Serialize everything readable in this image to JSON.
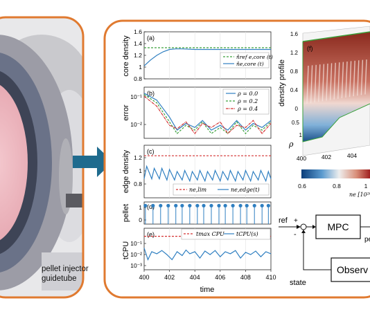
{
  "left_panel": {
    "caption_line1": "pellet injector",
    "caption_line2": "guidetube"
  },
  "plots": {
    "xlabel": "time",
    "x_ticks": [
      "400",
      "402",
      "404",
      "406",
      "408",
      "410"
    ],
    "a": {
      "tag": "(a)",
      "ylabel": "core density",
      "y_ticks": [
        "1.6",
        "1.4",
        "1.2",
        "1",
        "0.8"
      ],
      "legend": [
        "n̂ref e,core (t)",
        "n̂e,core (t)"
      ]
    },
    "b": {
      "tag": "(b)",
      "ylabel": "error",
      "y_ticks": [
        "10⁻¹",
        "10⁻²"
      ],
      "legend": [
        "ρ = 0.0",
        "ρ = 0.2",
        "ρ = 0.4"
      ]
    },
    "c": {
      "tag": "(c)",
      "ylabel": "edge density",
      "y_ticks": [
        "1.2",
        "1",
        "0.8"
      ],
      "legend": [
        "ne,lim",
        "ne,edge(t)"
      ]
    },
    "d": {
      "tag": "(d)",
      "ylabel": "pellet",
      "y_ticks": [
        "1",
        "0"
      ]
    },
    "e": {
      "tag": "(e)",
      "ylabel": "tCPU",
      "y_ticks": [
        "10⁻¹",
        "10⁻²",
        "10⁻³"
      ],
      "legend": [
        "tmax CPU",
        "tCPU(s)"
      ]
    }
  },
  "surface": {
    "tag": "(f)",
    "zlabel": "density profile",
    "ylabel": "ρ",
    "z_ticks": [
      "1.6",
      "1.2",
      "0.8",
      "0.4",
      "0"
    ],
    "rho_ticks": [
      "0.5",
      "1"
    ],
    "x_ticks": [
      "400",
      "402",
      "404"
    ],
    "colorbar_ticks": [
      "0.6",
      "0.8",
      "1"
    ],
    "colorbar_label": "ne [10²⁰"
  },
  "block_diagram": {
    "ref_label": "ref",
    "plus": "+",
    "minus": "-",
    "mpc_label": "MPC",
    "observer_label": "Observ",
    "state_label": "state",
    "pellet_label": "pe"
  },
  "colors": {
    "frame_orange": "#e07a30",
    "arrow_blue": "#1f6b8e",
    "series_blue": "#2f7fc1",
    "series_green": "#3aa03a",
    "series_red": "#d43030",
    "panel_bg": "#f2f2f2"
  },
  "chart_data": [
    {
      "type": "line",
      "panel": "a",
      "xlim": [
        400,
        410
      ],
      "ylim": [
        0.8,
        1.6
      ],
      "series": [
        {
          "name": "n̂ref e,core (t)",
          "x": [
            400,
            410
          ],
          "y": [
            1.33,
            1.33
          ]
        },
        {
          "name": "n̂e,core (t)",
          "x": [
            400,
            400.5,
            401,
            401.5,
            402,
            402.5,
            403,
            404,
            405,
            406,
            407,
            408,
            409,
            410
          ],
          "y": [
            1.02,
            1.12,
            1.2,
            1.26,
            1.3,
            1.31,
            1.31,
            1.3,
            1.3,
            1.3,
            1.3,
            1.3,
            1.3,
            1.3
          ]
        }
      ]
    },
    {
      "type": "line",
      "panel": "b",
      "xlim": [
        400,
        410
      ],
      "ylim": [
        0.002,
        0.15
      ],
      "yscale": "log",
      "series": [
        {
          "name": "ρ = 0.0",
          "x": [
            400,
            401,
            402,
            402.6,
            403.3,
            404,
            404.6,
            405.3,
            406,
            406.6,
            407.3,
            408,
            408.6,
            409.3,
            410
          ],
          "y": [
            0.09,
            0.05,
            0.012,
            0.004,
            0.007,
            0.005,
            0.009,
            0.004,
            0.006,
            0.004,
            0.009,
            0.004,
            0.007,
            0.005,
            0.009
          ]
        },
        {
          "name": "ρ = 0.2",
          "x": [
            400,
            401,
            402,
            402.6,
            403.3,
            404,
            404.6,
            405.3,
            406,
            406.6,
            407.3,
            408,
            408.6,
            409.3,
            410
          ],
          "y": [
            0.08,
            0.04,
            0.008,
            0.003,
            0.006,
            0.004,
            0.008,
            0.003,
            0.005,
            0.003,
            0.008,
            0.003,
            0.006,
            0.004,
            0.008
          ]
        },
        {
          "name": "ρ = 0.4",
          "x": [
            400,
            401,
            402,
            402.6,
            403.3,
            404,
            404.6,
            405.3,
            406,
            406.6,
            407.3,
            408,
            408.6,
            409.3,
            410
          ],
          "y": [
            0.07,
            0.03,
            0.006,
            0.0045,
            0.008,
            0.003,
            0.007,
            0.005,
            0.008,
            0.003,
            0.006,
            0.005,
            0.009,
            0.003,
            0.007
          ]
        }
      ]
    },
    {
      "type": "line",
      "panel": "c",
      "xlim": [
        400,
        410
      ],
      "ylim": [
        0.8,
        1.3
      ],
      "series": [
        {
          "name": "ne,lim",
          "x": [
            400,
            410
          ],
          "y": [
            1.2,
            1.2
          ]
        },
        {
          "name": "ne,edge(t)",
          "x": [
            400,
            400.2,
            400.6,
            400.8,
            401.2,
            401.4,
            401.8,
            402,
            402.4,
            402.6,
            403,
            403.2,
            403.6,
            403.8,
            404.2,
            404.4,
            404.8,
            405,
            405.4,
            405.6,
            406,
            406.2,
            406.6,
            406.8,
            407.2,
            407.4,
            407.8,
            408,
            408.4,
            408.6,
            409,
            409.2,
            409.6,
            409.8,
            410
          ],
          "y": [
            0.98,
            1.1,
            0.98,
            1.08,
            0.98,
            1.08,
            0.97,
            1.07,
            0.97,
            1.05,
            0.97,
            1.06,
            0.96,
            1.05,
            0.97,
            1.06,
            0.96,
            1.05,
            0.97,
            1.06,
            0.96,
            1.05,
            0.97,
            1.06,
            0.96,
            1.05,
            0.97,
            1.06,
            0.96,
            1.05,
            0.97,
            1.06,
            0.96,
            1.05,
            0.98
          ]
        }
      ]
    },
    {
      "type": "scatter",
      "panel": "d",
      "xlim": [
        400,
        410
      ],
      "ylim": [
        0,
        1.2
      ],
      "series": [
        {
          "name": "pellet",
          "x": [
            400.1,
            400.7,
            401.3,
            401.9,
            402.5,
            403.0,
            403.6,
            404.2,
            404.7,
            405.3,
            405.9,
            406.4,
            407.0,
            407.6,
            408.1,
            408.7,
            409.3,
            409.8
          ],
          "y": [
            1,
            1,
            1,
            1,
            1,
            1,
            1,
            1,
            1,
            1,
            1,
            1,
            1,
            1,
            1,
            1,
            1,
            1
          ]
        }
      ]
    },
    {
      "type": "line",
      "panel": "e",
      "xlim": [
        400,
        410
      ],
      "ylim": [
        0.001,
        0.3
      ],
      "yscale": "log",
      "series": [
        {
          "name": "tmax CPU",
          "x": [
            400,
            410
          ],
          "y": [
            0.1,
            0.1
          ]
        },
        {
          "name": "tCPU(s)",
          "x": [
            400,
            400.3,
            400.6,
            401,
            401.4,
            401.8,
            402.2,
            402.6,
            403,
            403.3,
            403.6,
            404,
            404.4,
            404.8,
            405.2,
            405.6,
            406,
            406.4,
            406.8,
            407.2,
            407.6,
            408,
            408.4,
            408.8,
            409.2,
            409.6,
            410
          ],
          "y": [
            0.02,
            0.004,
            0.012,
            0.009,
            0.014,
            0.008,
            0.004,
            0.012,
            0.007,
            0.015,
            0.009,
            0.012,
            0.005,
            0.013,
            0.008,
            0.014,
            0.006,
            0.012,
            0.009,
            0.014,
            0.005,
            0.011,
            0.008,
            0.013,
            0.006,
            0.012,
            0.009
          ]
        }
      ]
    }
  ]
}
